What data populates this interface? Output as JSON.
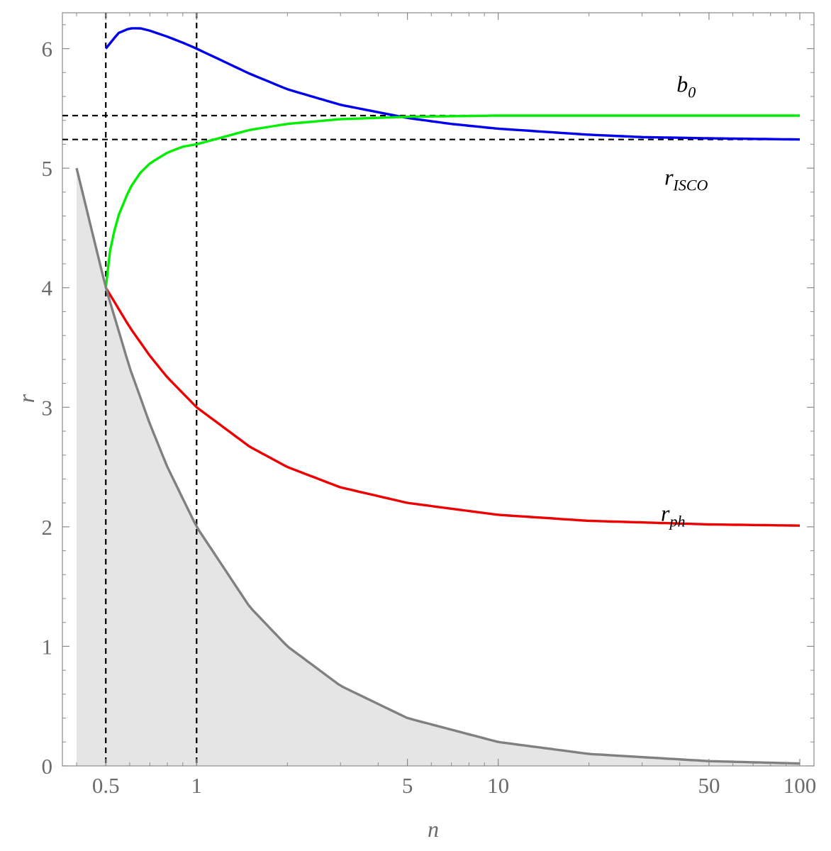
{
  "chart_data": {
    "type": "line",
    "x_scale": "log",
    "xlabel": "n",
    "ylabel": "r",
    "xlim": [
      0.4,
      100
    ],
    "ylim": [
      0,
      6.3
    ],
    "x_ticks": [
      0.5,
      1,
      5,
      10,
      50,
      100
    ],
    "x_tick_labels": [
      "0.5",
      "1",
      "5",
      "10",
      "50",
      "100"
    ],
    "y_ticks": [
      0,
      1,
      2,
      3,
      4,
      5,
      6
    ],
    "y_tick_labels": [
      "0",
      "1",
      "2",
      "3",
      "4",
      "5",
      "6"
    ],
    "grid": false,
    "series": [
      {
        "key": "b0",
        "color": "#0000ee",
        "x": [
          0.5,
          0.55,
          0.6,
          0.65,
          0.7,
          0.8,
          0.9,
          1,
          1.5,
          2,
          3,
          5,
          7,
          10,
          20,
          30,
          50,
          100
        ],
        "y": [
          6.0,
          6.13,
          6.17,
          6.17,
          6.15,
          6.1,
          6.05,
          6.0,
          5.79,
          5.66,
          5.53,
          5.42,
          5.37,
          5.33,
          5.28,
          5.26,
          5.25,
          5.24
        ]
      },
      {
        "key": "r_ISCO",
        "color": "#00ee00",
        "x": [
          0.5,
          0.52,
          0.55,
          0.6,
          0.65,
          0.7,
          0.8,
          0.9,
          1,
          1.5,
          2,
          3,
          5,
          10,
          20,
          50,
          100
        ],
        "y": [
          4.0,
          4.37,
          4.6,
          4.83,
          4.96,
          5.04,
          5.13,
          5.18,
          5.2,
          5.32,
          5.37,
          5.41,
          5.43,
          5.44,
          5.44,
          5.44,
          5.44
        ]
      },
      {
        "key": "r_ph",
        "color": "#ee0000",
        "x": [
          0.5,
          0.6,
          0.7,
          0.8,
          1,
          1.5,
          2,
          3,
          5,
          10,
          20,
          50,
          100
        ],
        "y": [
          4.0,
          3.67,
          3.43,
          3.25,
          3.0,
          2.67,
          2.5,
          2.33,
          2.2,
          2.1,
          2.05,
          2.02,
          2.01
        ]
      },
      {
        "key": "horizon",
        "color": "#808080",
        "x": [
          0.4,
          0.5,
          0.6,
          0.7,
          0.8,
          1,
          1.5,
          2,
          3,
          5,
          10,
          20,
          50,
          100
        ],
        "y": [
          5.0,
          4.0,
          3.33,
          2.86,
          2.5,
          2.0,
          1.33,
          1.0,
          0.67,
          0.4,
          0.2,
          0.1,
          0.04,
          0.02
        ]
      }
    ],
    "shaded_region": {
      "under": "horizon",
      "color": "#e5e5e5"
    },
    "reference_lines": [
      {
        "orientation": "vertical",
        "value": 0.5
      },
      {
        "orientation": "vertical",
        "value": 1
      },
      {
        "orientation": "horizontal",
        "value": 5.44
      },
      {
        "orientation": "horizontal",
        "value": 5.24
      }
    ],
    "annotations": [
      {
        "key": "b0",
        "base": "b",
        "sub": "0",
        "x": 42,
        "y": 5.64
      },
      {
        "key": "r_ISCO",
        "base": "r",
        "sub": "ISCO",
        "x": 42,
        "y": 4.86
      },
      {
        "key": "r_ph",
        "base": "r",
        "sub": "ph",
        "x": 38,
        "y": 2.05
      }
    ]
  }
}
